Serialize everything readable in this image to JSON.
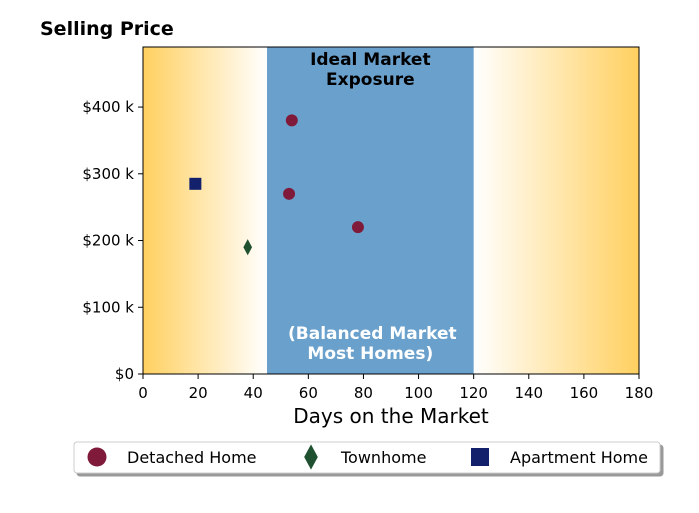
{
  "chart_data": {
    "type": "scatter",
    "ylabel": "Selling Price",
    "xlabel": "Days on the Market",
    "xlim": [
      0,
      180
    ],
    "ylim": [
      0,
      490000
    ],
    "xticks": [
      0,
      20,
      40,
      60,
      80,
      100,
      120,
      140,
      160,
      180
    ],
    "xtick_labels": [
      "0",
      "20",
      "40",
      "60",
      "80",
      "100",
      "120",
      "140",
      "160",
      "180"
    ],
    "yticks": [
      0,
      100000,
      200000,
      300000,
      400000
    ],
    "ytick_labels": [
      "$0",
      "$100 k",
      "$200 k",
      "$300 k",
      "$400 k"
    ],
    "grid": false,
    "legend_position": "bottom",
    "bands": [
      {
        "x_from": 45,
        "x_to": 120,
        "color": "#6aa0cc",
        "top_label": [
          "Ideal Market",
          "Exposure"
        ],
        "bottom_label": [
          "(Balanced Market",
          "Most Homes)"
        ]
      }
    ],
    "background_gradient": {
      "edge_color": "#ffd060",
      "center_color": "#ffffff"
    },
    "series": [
      {
        "name": "Detached Home",
        "marker": "circle",
        "color": "#801a3a",
        "points": [
          [
            54,
            380000
          ],
          [
            53,
            270000
          ],
          [
            78,
            220000
          ]
        ]
      },
      {
        "name": "Townhome",
        "marker": "diamond",
        "color": "#1f5130",
        "points": [
          [
            38,
            190000
          ]
        ]
      },
      {
        "name": "Apartment Home",
        "marker": "square",
        "color": "#13206b",
        "points": [
          [
            19,
            285000
          ]
        ]
      }
    ]
  }
}
